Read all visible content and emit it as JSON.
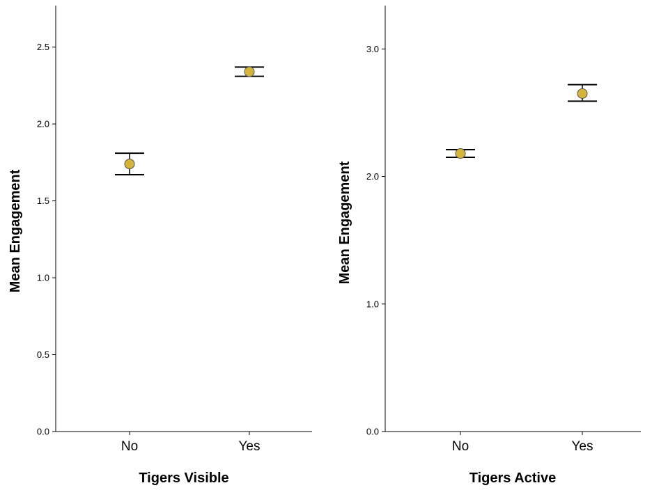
{
  "colors": {
    "point_fill": "#d4b43a",
    "point_stroke": "#555555",
    "axis": "#000000"
  },
  "chart_data": [
    {
      "type": "scatter",
      "xlabel": "Tigers Visible",
      "ylabel": "Mean Engagement",
      "categories": [
        "No",
        "Yes"
      ],
      "values": [
        1.74,
        2.34
      ],
      "error_low": [
        1.67,
        2.31
      ],
      "error_high": [
        1.81,
        2.37
      ],
      "ylim": [
        0,
        2.77
      ],
      "yticks": [
        0.0,
        0.5,
        1.0,
        1.5,
        2.0,
        2.5
      ],
      "ytick_labels": [
        "0.0",
        "0.5",
        "1.0",
        "1.5",
        "2.0",
        "2.5"
      ],
      "grid": false
    },
    {
      "type": "scatter",
      "xlabel": "Tigers Active",
      "ylabel": "Mean Engagement",
      "categories": [
        "No",
        "Yes"
      ],
      "values": [
        2.18,
        2.65
      ],
      "error_low": [
        2.15,
        2.59
      ],
      "error_high": [
        2.21,
        2.72
      ],
      "ylim": [
        0,
        3.34
      ],
      "yticks": [
        0.0,
        1.0,
        2.0,
        3.0
      ],
      "ytick_labels": [
        "0.0",
        "1.0",
        "2.0",
        "3.0"
      ],
      "grid": false
    }
  ]
}
